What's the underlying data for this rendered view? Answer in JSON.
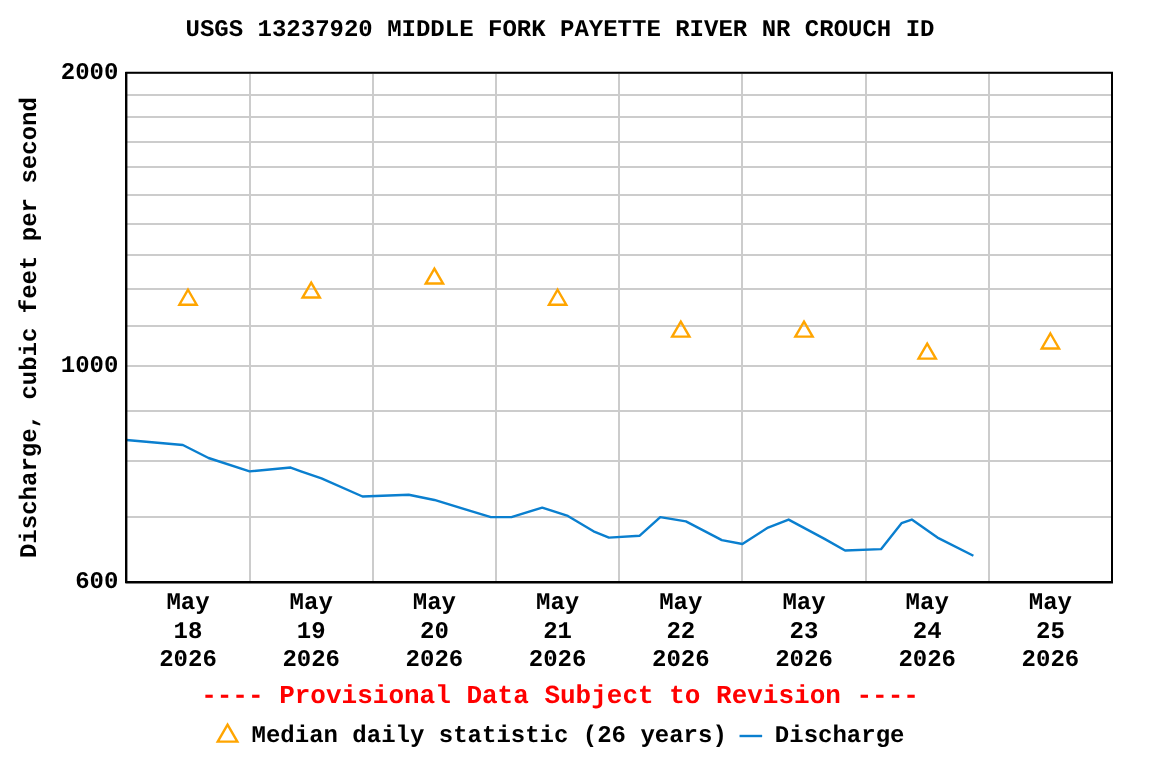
{
  "chart_data": {
    "type": "line",
    "title": "USGS 13237920 MIDDLE FORK PAYETTE RIVER NR CROUCH ID",
    "ylabel": "Discharge, cubic feet per second",
    "annotations": [
      "---- Provisional Data Subject to Revision ----"
    ],
    "log": "y",
    "grid": true,
    "legend": "bottom",
    "xlim": [
      "2026-05-18T00:00",
      "2026-05-26T00:00"
    ],
    "xticks": [
      {
        "value": "2026-05-18T12:00",
        "label": "May\n18\n2026"
      },
      {
        "value": "2026-05-19T00:00",
        "label": null
      },
      {
        "value": "2026-05-19T12:00",
        "label": "May\n19\n2026"
      },
      {
        "value": "2026-05-20T00:00",
        "label": null
      },
      {
        "value": "2026-05-20T12:00",
        "label": "May\n20\n2026"
      },
      {
        "value": "2026-05-21T00:00",
        "label": null
      },
      {
        "value": "2026-05-21T12:00",
        "label": "May\n21\n2026"
      },
      {
        "value": "2026-05-22T00:00",
        "label": null
      },
      {
        "value": "2026-05-22T12:00",
        "label": "May\n22\n2026"
      },
      {
        "value": "2026-05-23T00:00",
        "label": null
      },
      {
        "value": "2026-05-23T12:00",
        "label": "May\n23\n2026"
      },
      {
        "value": "2026-05-24T00:00",
        "label": null
      },
      {
        "value": "2026-05-24T12:00",
        "label": "May\n24\n2026"
      },
      {
        "value": "2026-05-25T00:00",
        "label": null
      },
      {
        "value": "2026-05-25T12:00",
        "label": "May\n25\n2026"
      }
    ],
    "ylim": [
      600,
      2000
    ],
    "yticks": [
      600,
      {
        "value": 700,
        "label": null
      },
      {
        "value": 800,
        "label": null
      },
      {
        "value": 900,
        "label": null
      },
      1000,
      {
        "value": 1100,
        "label": null
      },
      {
        "value": 1200,
        "label": null
      },
      {
        "value": 1300,
        "label": null
      },
      {
        "value": 1400,
        "label": null
      },
      {
        "value": 1500,
        "label": null
      },
      {
        "value": 1600,
        "label": null
      },
      {
        "value": 1700,
        "label": null
      },
      {
        "value": 1800,
        "label": null
      },
      {
        "value": 1900,
        "label": null
      },
      2000
    ],
    "series": [
      {
        "name": "Median daily statistic (26 years)",
        "type": "scatter",
        "marker": "triangle",
        "color": "#ffa500",
        "x": [
          "2026-05-18T12:00",
          "2026-05-19T12:00",
          "2026-05-20T12:00",
          "2026-05-21T12:00",
          "2026-05-22T12:00",
          "2026-05-23T12:00",
          "2026-05-24T12:00",
          "2026-05-25T12:00"
        ],
        "values": [
          1170,
          1190,
          1230,
          1170,
          1085,
          1085,
          1030,
          1055
        ]
      },
      {
        "name": "Discharge",
        "type": "line",
        "marker": "none",
        "line_style": "solid",
        "color": "#0a7fcf",
        "x": [
          "2026-05-18T00:00",
          "2026-05-18T11:00",
          "2026-05-18T16:00",
          "2026-05-19T00:00",
          "2026-05-19T08:00",
          "2026-05-19T10:00",
          "2026-05-19T14:00",
          "2026-05-19T22:00",
          "2026-05-20T07:00",
          "2026-05-20T12:00",
          "2026-05-20T23:00",
          "2026-05-21T03:00",
          "2026-05-21T09:00",
          "2026-05-21T14:00",
          "2026-05-21T19:00",
          "2026-05-21T22:00",
          "2026-05-22T04:00",
          "2026-05-22T08:00",
          "2026-05-22T13:00",
          "2026-05-22T20:00",
          "2026-05-23T00:00",
          "2026-05-23T05:00",
          "2026-05-23T09:00",
          "2026-05-23T16:00",
          "2026-05-23T20:00",
          "2026-05-24T03:00",
          "2026-05-24T07:00",
          "2026-05-24T09:00",
          "2026-05-24T14:00",
          "2026-05-24T21:00"
        ],
        "values": [
          840,
          830,
          805,
          780,
          787,
          780,
          767,
          735,
          738,
          729,
          700,
          700,
          716,
          702,
          677,
          667,
          670,
          700,
          693,
          663,
          657,
          683,
          696,
          665,
          647,
          649,
          690,
          696,
          667,
          639
        ]
      }
    ]
  }
}
